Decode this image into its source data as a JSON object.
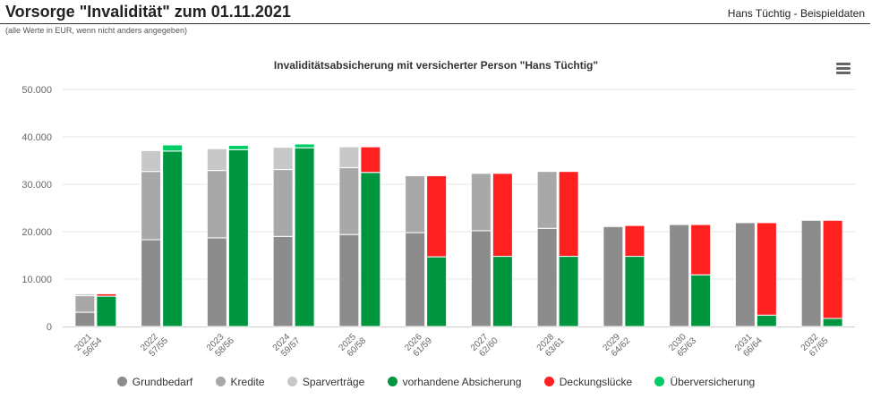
{
  "header": {
    "title": "Vorsorge \"Invalidität\" zum 01.11.2021",
    "person": "Hans Tüchtig - Beispieldaten",
    "note": "(alle Werte in EUR, wenn nicht anders angegeben)"
  },
  "menu_icon": "hamburger-menu-icon",
  "chart_data": {
    "type": "bar",
    "title": "Invaliditätsabsicherung mit versicherter Person \"Hans Tüchtig\"",
    "xlabel": "",
    "ylabel": "",
    "ylim": [
      0,
      50000
    ],
    "yticks": [
      0,
      10000,
      20000,
      30000,
      40000,
      50000
    ],
    "ytick_labels": [
      "0",
      "10.000",
      "20.000",
      "30.000",
      "40.000",
      "50.000"
    ],
    "grid": true,
    "legend_position": "bottom",
    "categories": [
      [
        "2021",
        "56/54"
      ],
      [
        "2022",
        "57/55"
      ],
      [
        "2023",
        "58/56"
      ],
      [
        "2024",
        "59/57"
      ],
      [
        "2025",
        "60/58"
      ],
      [
        "2026",
        "61/59"
      ],
      [
        "2027",
        "62/60"
      ],
      [
        "2028",
        "63/61"
      ],
      [
        "2029",
        "64/62"
      ],
      [
        "2030",
        "65/63"
      ],
      [
        "2031",
        "66/64"
      ],
      [
        "2032",
        "67/65"
      ]
    ],
    "stacks": [
      {
        "stack": "Bedarf",
        "series": [
          {
            "name": "Grundbedarf",
            "color": "#8c8c8c",
            "values": [
              3000,
              18300,
              18700,
              19000,
              19400,
              19800,
              20200,
              20700,
              21100,
              21500,
              21900,
              22400
            ]
          },
          {
            "name": "Kredite",
            "color": "#a8a8a8",
            "values": [
              3500,
              14400,
              14200,
              14100,
              14100,
              12000,
              12100,
              12000,
              200,
              0,
              0,
              0
            ]
          },
          {
            "name": "Sparverträge",
            "color": "#c8c8c8",
            "values": [
              400,
              4400,
              4600,
              4700,
              4400,
              0,
              0,
              0,
              0,
              0,
              0,
              0
            ]
          }
        ]
      },
      {
        "stack": "Absicherung",
        "series": [
          {
            "name": "vorhandene Absicherung",
            "color": "#009640",
            "values": [
              6400,
              37000,
              37300,
              37700,
              32500,
              14700,
              14800,
              14800,
              14800,
              10900,
              2400,
              1700
            ]
          },
          {
            "name": "Deckungslücke",
            "color": "#ff2020",
            "values": [
              500,
              0,
              0,
              0,
              5400,
              17100,
              17500,
              17900,
              6500,
              10600,
              19500,
              20700
            ]
          },
          {
            "name": "Überversicherung",
            "color": "#00cc66",
            "values": [
              0,
              1300,
              900,
              800,
              0,
              0,
              0,
              0,
              0,
              0,
              0,
              0
            ]
          }
        ]
      }
    ]
  },
  "legend": [
    {
      "label": "Grundbedarf",
      "color": "#8c8c8c"
    },
    {
      "label": "Kredite",
      "color": "#a8a8a8"
    },
    {
      "label": "Sparverträge",
      "color": "#c8c8c8"
    },
    {
      "label": "vorhandene Absicherung",
      "color": "#009640"
    },
    {
      "label": "Deckungslücke",
      "color": "#ff2020"
    },
    {
      "label": "Überversicherung",
      "color": "#00cc66"
    }
  ]
}
